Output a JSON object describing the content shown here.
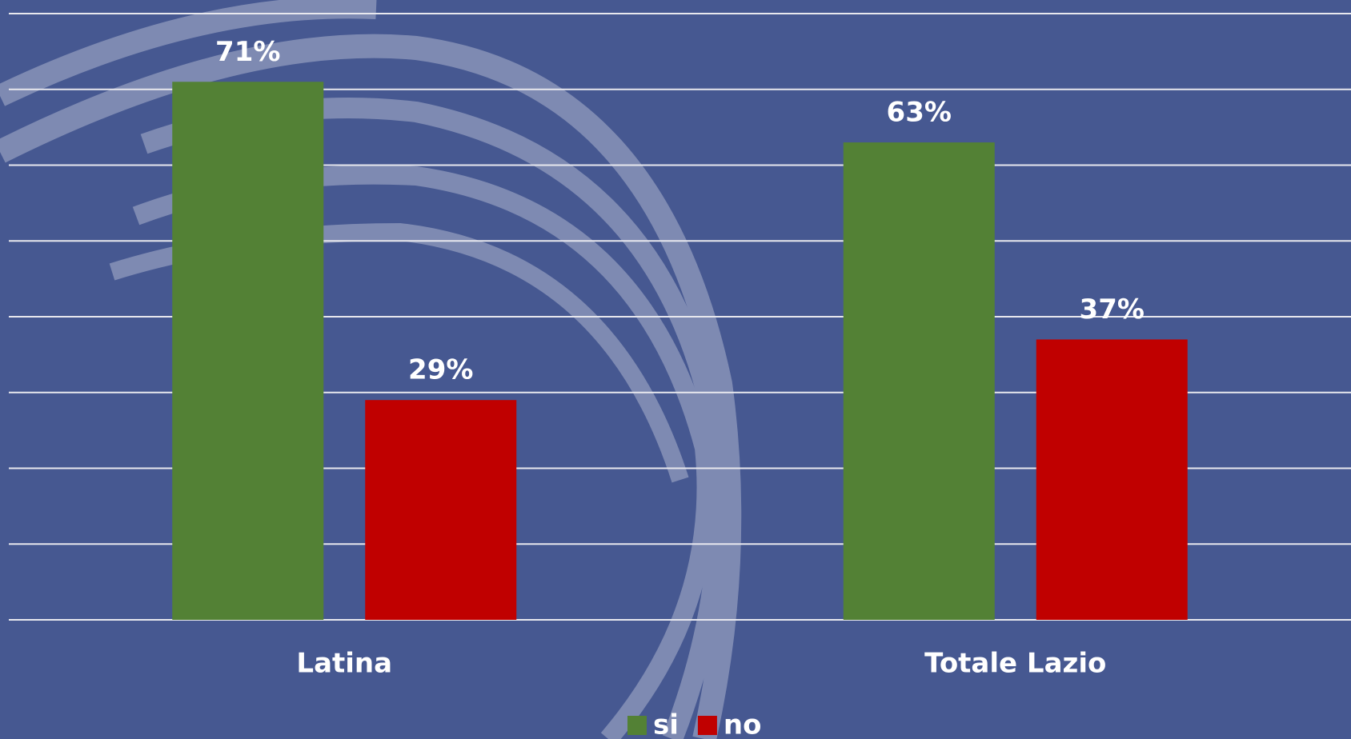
{
  "chart_data": {
    "type": "bar",
    "categories": [
      "Latina",
      "Totale Lazio"
    ],
    "series": [
      {
        "name": "si",
        "color": "#538135",
        "values": [
          71,
          63
        ],
        "value_labels": [
          "71%",
          "63%"
        ]
      },
      {
        "name": "no",
        "color": "#c00000",
        "values": [
          29,
          37
        ],
        "value_labels": [
          "29%",
          "37%"
        ]
      }
    ],
    "ylim": [
      0,
      80
    ],
    "yticks": [
      0,
      10,
      20,
      30,
      40,
      50,
      60,
      70,
      80
    ],
    "grid": true,
    "legend": "bottom"
  }
}
